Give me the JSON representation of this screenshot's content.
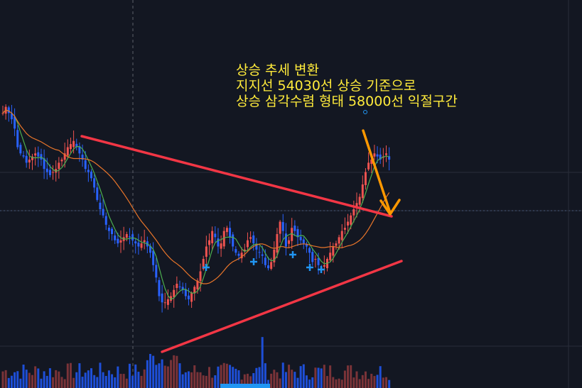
{
  "annotation": {
    "lines": [
      "상승 추세 변환",
      "지지선 54030선 상승 기준으로",
      "상승 삼각수렴 형태 58000선 익절구간"
    ]
  },
  "colors": {
    "background": "#131722",
    "grid": "#2a2e39",
    "bullish": "#ef5350",
    "bearish": "#2962ff",
    "volume_bullish": "#7a3338",
    "volume_bearish": "#1e4fd8",
    "ma_fast": "#4caf50",
    "ma_slow": "#e8752a",
    "trendline": "#f23645",
    "arrow": "#ff9800",
    "annotation_text": "#ffeb3b",
    "marker": "#2196f3"
  },
  "chart_data": {
    "type": "candlestick",
    "closes": [
      71,
      73,
      71,
      69,
      66,
      60,
      58,
      57,
      55,
      56,
      57,
      58,
      57,
      56,
      53,
      52,
      51,
      52,
      53,
      55,
      56,
      58,
      60,
      61,
      62,
      60,
      58,
      56,
      53,
      52,
      50,
      47,
      43,
      40,
      38,
      35,
      33,
      32,
      30,
      29,
      30,
      31,
      32,
      31,
      30,
      29,
      28,
      29,
      30,
      28,
      26,
      22,
      18,
      12,
      10,
      10,
      11,
      12,
      14,
      16,
      15,
      14,
      12,
      11,
      13,
      15,
      17,
      20,
      24,
      28,
      30,
      33,
      31,
      28,
      29,
      33,
      34,
      31,
      28,
      26,
      25,
      26,
      27,
      30,
      31,
      29,
      27,
      26,
      25,
      22,
      21,
      23,
      27,
      32,
      36,
      33,
      28,
      30,
      34,
      33,
      31,
      30,
      29,
      28,
      26,
      23,
      24,
      22,
      21,
      22,
      24,
      26,
      28,
      29,
      31,
      33,
      34,
      36,
      38,
      40,
      42,
      44,
      48,
      52,
      55,
      56,
      58,
      57,
      56,
      57,
      58,
      56
    ],
    "ma_fast_note": "green moving average",
    "ma_slow_note": "orange moving average",
    "trendlines": [
      "descending resistance",
      "ascending support"
    ]
  }
}
